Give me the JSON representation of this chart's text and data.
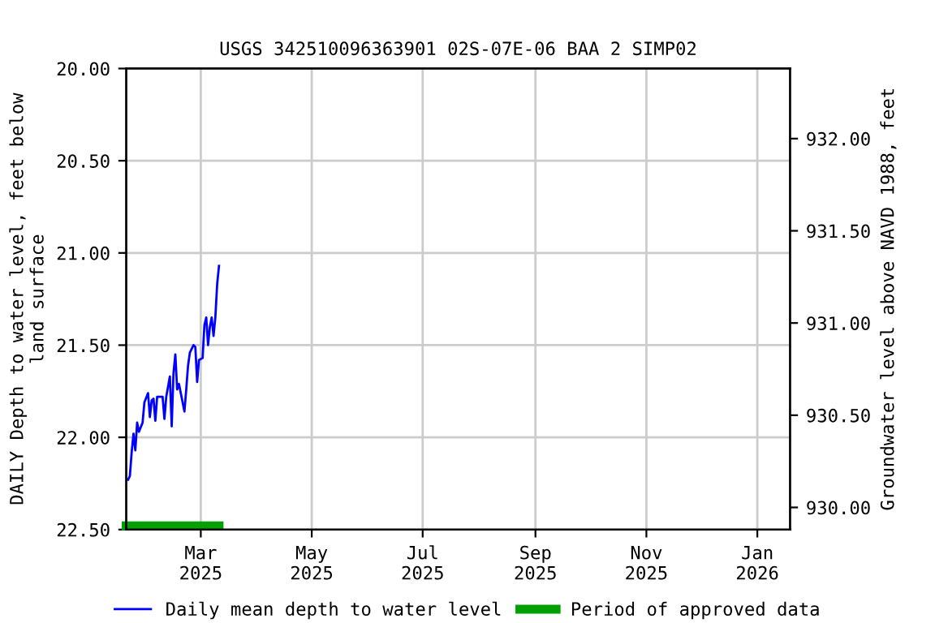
{
  "chart_data": {
    "type": "line",
    "title": "USGS 342510096363901 02S-07E-06 BAA 2 SIMP02",
    "ylabel": "DAILY Depth to water level, feet below\nland surface",
    "y2label": "Groundwater level above NAVD 1988, feet",
    "xlim": [
      "2025-01-19",
      "2026-01-19"
    ],
    "xticks": [
      {
        "value": "2025-03-01",
        "label": "Mar\n2025"
      },
      {
        "value": "2025-05-01",
        "label": "May\n2025"
      },
      {
        "value": "2025-07-01",
        "label": "Jul\n2025"
      },
      {
        "value": "2025-09-01",
        "label": "Sep\n2025"
      },
      {
        "value": "2025-11-01",
        "label": "Nov\n2025"
      },
      {
        "value": "2026-01-01",
        "label": "Jan\n2026"
      }
    ],
    "ylim": [
      22.5,
      20.0
    ],
    "yticks": [
      {
        "value": 20.0,
        "label": "20.00"
      },
      {
        "value": 20.5,
        "label": "20.50"
      },
      {
        "value": 21.0,
        "label": "21.00"
      },
      {
        "value": 21.5,
        "label": "21.50"
      },
      {
        "value": 22.0,
        "label": "22.00"
      },
      {
        "value": 22.5,
        "label": "22.50"
      }
    ],
    "y2lim": [
      929.88,
      932.38
    ],
    "y2ticks": [
      {
        "value": 930.0,
        "label": "930.00"
      },
      {
        "value": 930.5,
        "label": "930.50"
      },
      {
        "value": 931.0,
        "label": "931.00"
      },
      {
        "value": 931.5,
        "label": "931.50"
      },
      {
        "value": 932.0,
        "label": "932.00"
      }
    ],
    "grid": true,
    "legend": "bottom",
    "series": [
      {
        "name": "Daily mean depth to water level",
        "color": "#0000ff",
        "x": [
          "2025-01-20",
          "2025-01-21",
          "2025-01-22",
          "2025-01-23",
          "2025-01-24",
          "2025-01-25",
          "2025-01-26",
          "2025-01-28",
          "2025-01-29",
          "2025-01-31",
          "2025-02-01",
          "2025-02-02",
          "2025-02-03",
          "2025-02-04",
          "2025-02-05",
          "2025-02-08",
          "2025-02-09",
          "2025-02-10",
          "2025-02-12",
          "2025-02-13",
          "2025-02-14",
          "2025-02-15",
          "2025-02-16",
          "2025-02-17",
          "2025-02-20",
          "2025-02-21",
          "2025-02-22",
          "2025-02-23",
          "2025-02-25",
          "2025-02-26",
          "2025-02-27",
          "2025-02-28",
          "2025-03-02",
          "2025-03-03",
          "2025-03-04",
          "2025-03-05",
          "2025-03-06",
          "2025-03-07",
          "2025-03-08",
          "2025-03-09",
          "2025-03-10",
          "2025-03-11"
        ],
        "values": [
          22.23,
          22.21,
          22.08,
          21.98,
          22.07,
          21.92,
          21.97,
          21.92,
          21.81,
          21.76,
          21.89,
          21.8,
          21.79,
          21.91,
          21.78,
          21.78,
          21.9,
          21.78,
          21.67,
          21.94,
          21.65,
          21.55,
          21.74,
          21.71,
          21.86,
          21.74,
          21.61,
          21.54,
          21.5,
          21.51,
          21.7,
          21.58,
          21.57,
          21.39,
          21.35,
          21.5,
          21.4,
          21.35,
          21.45,
          21.35,
          21.17,
          21.07
        ]
      },
      {
        "name": "Period of approved data",
        "color": "#00a000",
        "x": [
          "2025-01-19",
          "2025-03-11"
        ],
        "values": [
          22.48,
          22.48
        ]
      }
    ]
  }
}
